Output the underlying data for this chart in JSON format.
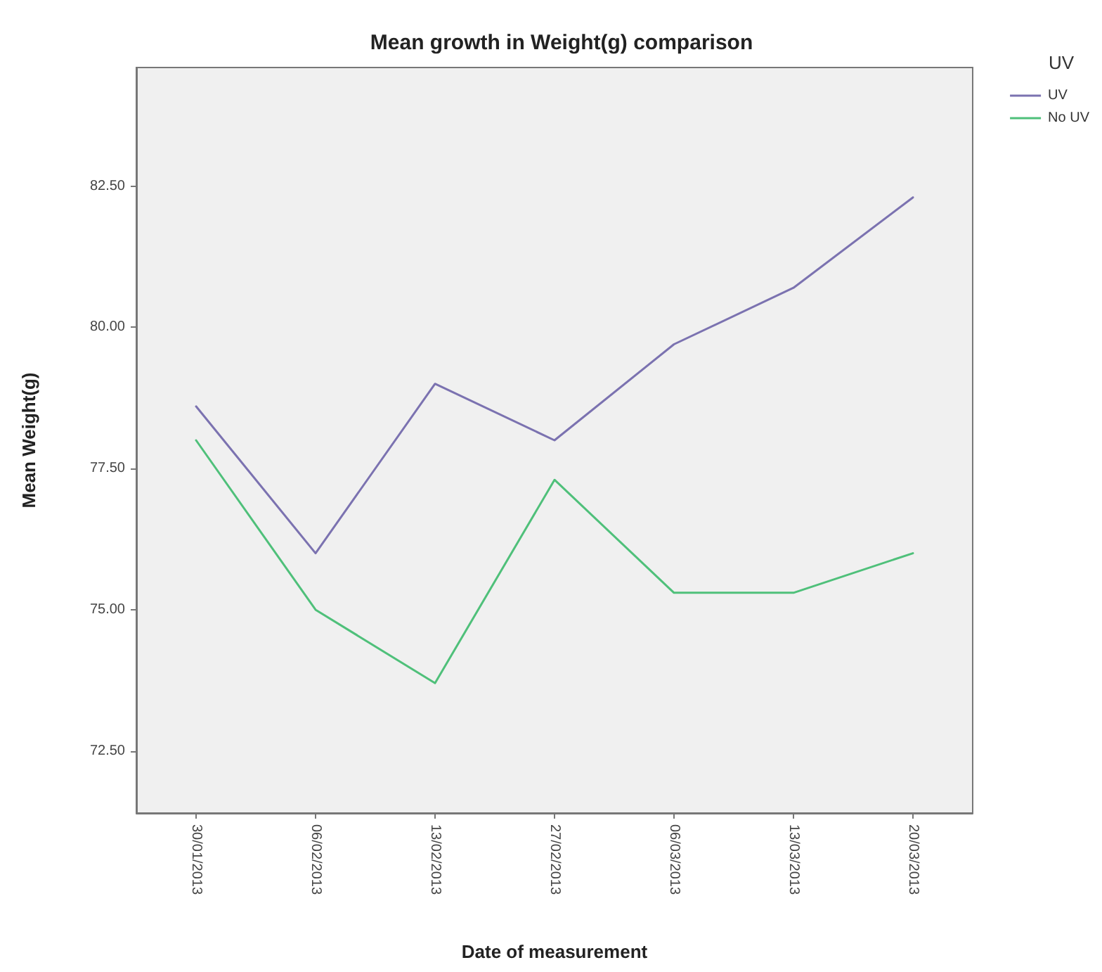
{
  "chart_data": {
    "type": "line",
    "title": "Mean growth in Weight(g) comparison",
    "xlabel": "Date of measurement",
    "ylabel": "Mean Weight(g)",
    "legend_title": "UV",
    "categories": [
      "30/01/2013",
      "06/02/2013",
      "13/02/2013",
      "27/02/2013",
      "06/03/2013",
      "13/03/2013",
      "20/03/2013"
    ],
    "series": [
      {
        "name": "UV",
        "color": "#7b72b0",
        "values": [
          78.6,
          76.0,
          79.0,
          78.0,
          79.7,
          80.7,
          82.3
        ]
      },
      {
        "name": "No UV",
        "color": "#4fc07a",
        "values": [
          78.0,
          75.0,
          73.7,
          77.3,
          75.3,
          75.3,
          76.0
        ]
      }
    ],
    "ylim": [
      71.4,
      84.6
    ],
    "yticks": [
      {
        "value": 72.5,
        "label": "72.50"
      },
      {
        "value": 75,
        "label": "75.00"
      },
      {
        "value": 77.5,
        "label": "77.50"
      },
      {
        "value": 80,
        "label": "80.00"
      },
      {
        "value": 82.5,
        "label": "82.50"
      }
    ],
    "grid": false,
    "legend": "top right",
    "marker": "none",
    "line_style": "solid"
  }
}
